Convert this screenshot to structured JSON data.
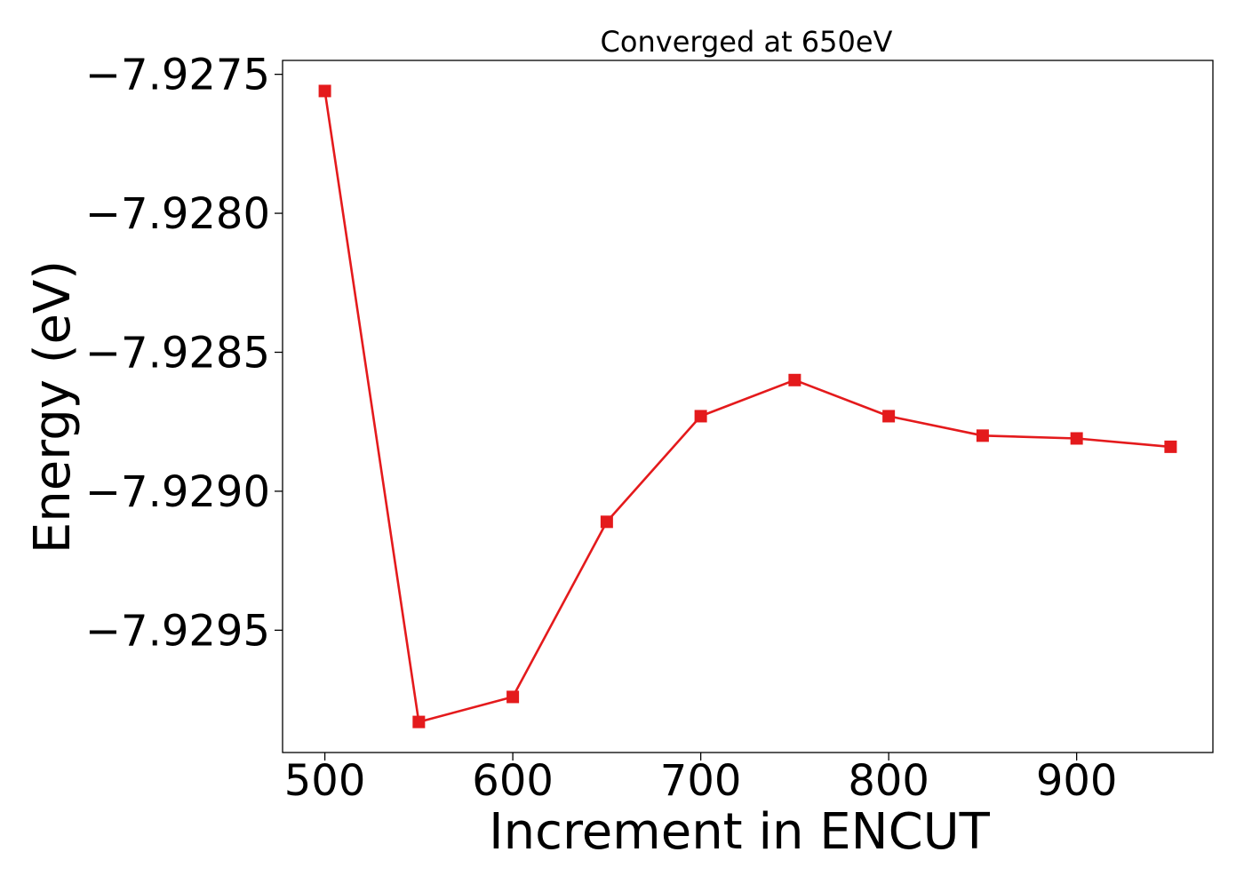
{
  "chart_data": {
    "type": "line",
    "title": "Converged at 650eV",
    "xlabel": "Increment in ENCUT",
    "ylabel": "Energy (eV)",
    "x": [
      500,
      550,
      600,
      650,
      700,
      750,
      800,
      850,
      900,
      950
    ],
    "series": [
      {
        "values": [
          -7.92756,
          -7.92983,
          -7.92974,
          -7.92911,
          -7.92873,
          -7.9286,
          -7.92873,
          -7.9288,
          -7.92881,
          -7.92884
        ],
        "color": "#e41a1c",
        "marker": "square"
      }
    ],
    "xticks": [
      500,
      600,
      700,
      800,
      900
    ],
    "xtick_labels": [
      "500",
      "600",
      "700",
      "800",
      "900"
    ],
    "yticks": [
      -7.9275,
      -7.928,
      -7.9285,
      -7.929,
      -7.9295
    ],
    "ytick_labels": [
      "−7.9275",
      "−7.9280",
      "−7.9285",
      "−7.9290",
      "−7.9295"
    ],
    "xlim": [
      477.5,
      972.5
    ],
    "ylim": [
      -7.92994,
      -7.92745
    ],
    "grid": false,
    "legend": "none"
  }
}
